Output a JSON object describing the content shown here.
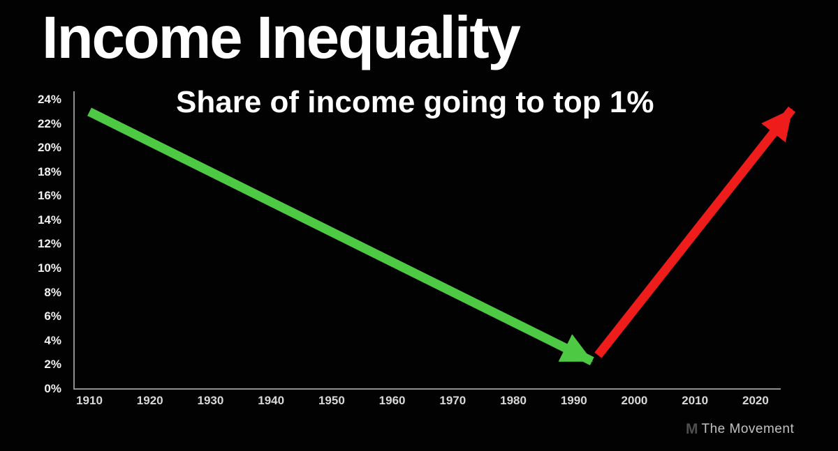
{
  "page": {
    "title": "Income Inequality",
    "subtitle": "Share of income going to top 1%"
  },
  "watermark": {
    "logo": "M",
    "text": "The Movement"
  },
  "colors": {
    "background": "#020202",
    "title_text": "#ffffff",
    "axis_line": "#8f8f8f",
    "y_tick_label": "#f0f0f0",
    "x_tick_label": "#d8d8d8",
    "decline_arrow_green": "#4ec944",
    "rise_arrow_red": "#ee1d1b",
    "watermark_logo": "#4f4f4f",
    "watermark_text": "#c2c2c2"
  },
  "chart_data": {
    "type": "line",
    "title": "Income Inequality",
    "subtitle": "Share of income going to top 1%",
    "xlabel": "",
    "ylabel": "",
    "grid": false,
    "legend": "none",
    "x_ticks": [
      "1910",
      "1920",
      "1930",
      "1940",
      "1950",
      "1960",
      "1970",
      "1980",
      "1990",
      "2000",
      "2010",
      "2020"
    ],
    "y_ticks": [
      "24%",
      "22%",
      "20%",
      "18%",
      "16%",
      "14%",
      "12%",
      "10%",
      "8%",
      "6%",
      "4%",
      "2%",
      "0%"
    ],
    "xlim": [
      1907,
      2024
    ],
    "ylim": [
      0,
      24
    ],
    "series": [
      {
        "name": "decline-arrow",
        "color": "#4ec944",
        "style": "thick-arrow",
        "points": [
          {
            "year": 1910,
            "value": 23.0
          },
          {
            "year": 1993,
            "value": 2.3
          }
        ]
      },
      {
        "name": "rise-arrow",
        "color": "#ee1d1b",
        "style": "thick-arrow",
        "points": [
          {
            "year": 1994,
            "value": 2.8
          },
          {
            "year": 2026,
            "value": 23.2
          }
        ]
      }
    ]
  }
}
